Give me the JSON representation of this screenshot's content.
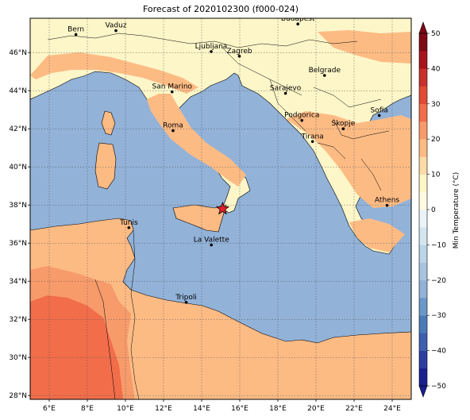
{
  "title": "Forecast of 2020102300 (f000-024)",
  "map": {
    "lon_range": [
      5,
      25
    ],
    "lat_range": [
      27.8,
      47.8
    ],
    "gridlines": true,
    "marker": {
      "name": "red-star",
      "lon": 15.1,
      "lat": 37.8,
      "color": "#e8202a"
    },
    "x_ticks": [
      "6°E",
      "8°E",
      "10°E",
      "12°E",
      "14°E",
      "16°E",
      "18°E",
      "20°E",
      "22°E",
      "24°E"
    ],
    "y_ticks": [
      "28°N",
      "30°N",
      "32°N",
      "34°N",
      "36°N",
      "38°N",
      "40°N",
      "42°N",
      "44°N",
      "46°N"
    ],
    "colors": {
      "sea": "#92b2d8",
      "cool_land": "#fdf6c8",
      "mild": "#fdbb84",
      "warm": "#f79b6b",
      "hot": "#f26d4a",
      "coast_red": "#e34a33"
    }
  },
  "cities": [
    {
      "name": "Bern",
      "lon": 7.4,
      "lat": 46.95
    },
    {
      "name": "Vaduz",
      "lon": 9.5,
      "lat": 47.15
    },
    {
      "name": "Budapest",
      "lon": 19.05,
      "lat": 47.5
    },
    {
      "name": "Ljubljana",
      "lon": 14.5,
      "lat": 46.05
    },
    {
      "name": "Zagreb",
      "lon": 15.98,
      "lat": 45.81
    },
    {
      "name": "Belgrade",
      "lon": 20.45,
      "lat": 44.8
    },
    {
      "name": "Sarajevo",
      "lon": 18.4,
      "lat": 43.86
    },
    {
      "name": "San Marino",
      "lon": 12.45,
      "lat": 43.94
    },
    {
      "name": "Sofia",
      "lon": 23.32,
      "lat": 42.7
    },
    {
      "name": "Podgorica",
      "lon": 19.26,
      "lat": 42.44
    },
    {
      "name": "Skopje",
      "lon": 21.43,
      "lat": 42.0
    },
    {
      "name": "Roma",
      "lon": 12.5,
      "lat": 41.9
    },
    {
      "name": "Tirana",
      "lon": 19.82,
      "lat": 41.33
    },
    {
      "name": "Athens",
      "lon": 23.73,
      "lat": 37.98
    },
    {
      "name": "Tunis",
      "lon": 10.18,
      "lat": 36.81
    },
    {
      "name": "La Valette",
      "lon": 14.51,
      "lat": 35.9
    },
    {
      "name": "Tripoli",
      "lon": 13.19,
      "lat": 32.89
    }
  ],
  "colorbar": {
    "label": "Min Temperature (°C)",
    "ticks": [
      "50",
      "40",
      "30",
      "20",
      "10",
      "0",
      "−10",
      "−20",
      "−30",
      "−40",
      "−50"
    ],
    "levels": [
      {
        "from": -50,
        "to": -45,
        "color": "#1a1f8f"
      },
      {
        "from": -45,
        "to": -40,
        "color": "#2c3ea0"
      },
      {
        "from": -40,
        "to": -35,
        "color": "#3f5fb0"
      },
      {
        "from": -35,
        "to": -30,
        "color": "#4a7bb8"
      },
      {
        "from": -30,
        "to": -25,
        "color": "#6a98c8"
      },
      {
        "from": -25,
        "to": -20,
        "color": "#92b2d8"
      },
      {
        "from": -20,
        "to": -15,
        "color": "#a8c4e0"
      },
      {
        "from": -15,
        "to": -10,
        "color": "#bcd4e8"
      },
      {
        "from": -10,
        "to": -5,
        "color": "#d4e6f0"
      },
      {
        "from": -5,
        "to": 0,
        "color": "#eaf4f8"
      },
      {
        "from": 0,
        "to": 5,
        "color": "#fffbe2"
      },
      {
        "from": 5,
        "to": 10,
        "color": "#fdf6c8"
      },
      {
        "from": 10,
        "to": 15,
        "color": "#fddba6"
      },
      {
        "from": 15,
        "to": 20,
        "color": "#fdbb84"
      },
      {
        "from": 20,
        "to": 25,
        "color": "#f79b6b"
      },
      {
        "from": 25,
        "to": 30,
        "color": "#f26d4a"
      },
      {
        "from": 30,
        "to": 35,
        "color": "#e34a33"
      },
      {
        "from": 35,
        "to": 40,
        "color": "#c9302c"
      },
      {
        "from": 40,
        "to": 45,
        "color": "#a8141e"
      },
      {
        "from": 45,
        "to": 50,
        "color": "#7f0a14"
      }
    ]
  }
}
